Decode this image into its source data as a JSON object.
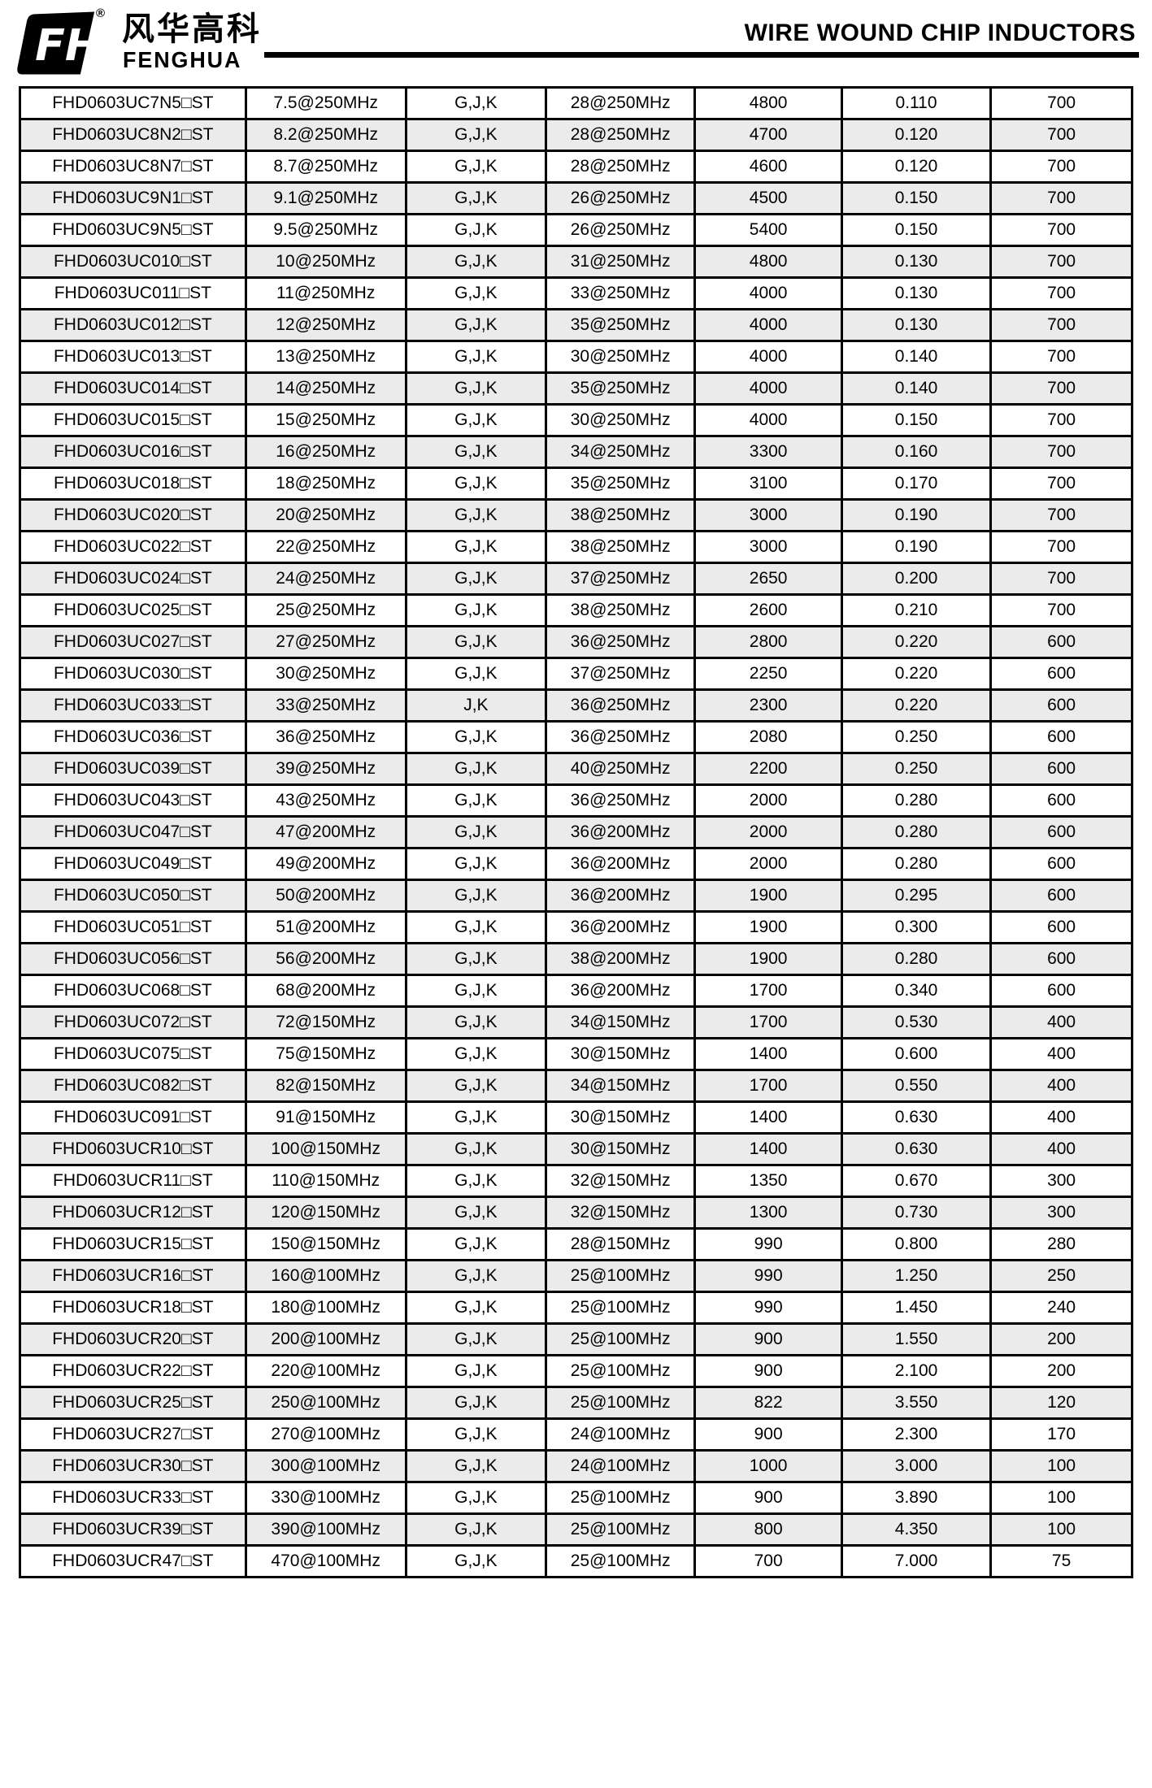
{
  "header": {
    "brand_cn": "风华高科",
    "brand_en": "FENGHUA",
    "registered_mark": "®",
    "logo_monogram": "FH",
    "title": "WIRE WOUND CHIP INDUCTORS"
  },
  "colors": {
    "text": "#000000",
    "border": "#000000",
    "row_alt_background": "#ebebeb",
    "logo": "#000000"
  },
  "table": {
    "column_keys": [
      "part-number",
      "inductance",
      "tolerance",
      "q-factor",
      "srf",
      "dcr",
      "rated-current"
    ],
    "rows": [
      [
        "FHD0603UC7N5□ST",
        "7.5@250MHz",
        "G,J,K",
        "28@250MHz",
        "4800",
        "0.110",
        "700"
      ],
      [
        "FHD0603UC8N2□ST",
        "8.2@250MHz",
        "G,J,K",
        "28@250MHz",
        "4700",
        "0.120",
        "700"
      ],
      [
        "FHD0603UC8N7□ST",
        "8.7@250MHz",
        "G,J,K",
        "28@250MHz",
        "4600",
        "0.120",
        "700"
      ],
      [
        "FHD0603UC9N1□ST",
        "9.1@250MHz",
        "G,J,K",
        "26@250MHz",
        "4500",
        "0.150",
        "700"
      ],
      [
        "FHD0603UC9N5□ST",
        "9.5@250MHz",
        "G,J,K",
        "26@250MHz",
        "5400",
        "0.150",
        "700"
      ],
      [
        "FHD0603UC010□ST",
        "10@250MHz",
        "G,J,K",
        "31@250MHz",
        "4800",
        "0.130",
        "700"
      ],
      [
        "FHD0603UC011□ST",
        "11@250MHz",
        "G,J,K",
        "33@250MHz",
        "4000",
        "0.130",
        "700"
      ],
      [
        "FHD0603UC012□ST",
        "12@250MHz",
        "G,J,K",
        "35@250MHz",
        "4000",
        "0.130",
        "700"
      ],
      [
        "FHD0603UC013□ST",
        "13@250MHz",
        "G,J,K",
        "30@250MHz",
        "4000",
        "0.140",
        "700"
      ],
      [
        "FHD0603UC014□ST",
        "14@250MHz",
        "G,J,K",
        "35@250MHz",
        "4000",
        "0.140",
        "700"
      ],
      [
        "FHD0603UC015□ST",
        "15@250MHz",
        "G,J,K",
        "30@250MHz",
        "4000",
        "0.150",
        "700"
      ],
      [
        "FHD0603UC016□ST",
        "16@250MHz",
        "G,J,K",
        "34@250MHz",
        "3300",
        "0.160",
        "700"
      ],
      [
        "FHD0603UC018□ST",
        "18@250MHz",
        "G,J,K",
        "35@250MHz",
        "3100",
        "0.170",
        "700"
      ],
      [
        "FHD0603UC020□ST",
        "20@250MHz",
        "G,J,K",
        "38@250MHz",
        "3000",
        "0.190",
        "700"
      ],
      [
        "FHD0603UC022□ST",
        "22@250MHz",
        "G,J,K",
        "38@250MHz",
        "3000",
        "0.190",
        "700"
      ],
      [
        "FHD0603UC024□ST",
        "24@250MHz",
        "G,J,K",
        "37@250MHz",
        "2650",
        "0.200",
        "700"
      ],
      [
        "FHD0603UC025□ST",
        "25@250MHz",
        "G,J,K",
        "38@250MHz",
        "2600",
        "0.210",
        "700"
      ],
      [
        "FHD0603UC027□ST",
        "27@250MHz",
        "G,J,K",
        "36@250MHz",
        "2800",
        "0.220",
        "600"
      ],
      [
        "FHD0603UC030□ST",
        "30@250MHz",
        "G,J,K",
        "37@250MHz",
        "2250",
        "0.220",
        "600"
      ],
      [
        "FHD0603UC033□ST",
        "33@250MHz",
        "J,K",
        "36@250MHz",
        "2300",
        "0.220",
        "600"
      ],
      [
        "FHD0603UC036□ST",
        "36@250MHz",
        "G,J,K",
        "36@250MHz",
        "2080",
        "0.250",
        "600"
      ],
      [
        "FHD0603UC039□ST",
        "39@250MHz",
        "G,J,K",
        "40@250MHz",
        "2200",
        "0.250",
        "600"
      ],
      [
        "FHD0603UC043□ST",
        "43@250MHz",
        "G,J,K",
        "36@250MHz",
        "2000",
        "0.280",
        "600"
      ],
      [
        "FHD0603UC047□ST",
        "47@200MHz",
        "G,J,K",
        "36@200MHz",
        "2000",
        "0.280",
        "600"
      ],
      [
        "FHD0603UC049□ST",
        "49@200MHz",
        "G,J,K",
        "36@200MHz",
        "2000",
        "0.280",
        "600"
      ],
      [
        "FHD0603UC050□ST",
        "50@200MHz",
        "G,J,K",
        "36@200MHz",
        "1900",
        "0.295",
        "600"
      ],
      [
        "FHD0603UC051□ST",
        "51@200MHz",
        "G,J,K",
        "36@200MHz",
        "1900",
        "0.300",
        "600"
      ],
      [
        "FHD0603UC056□ST",
        "56@200MHz",
        "G,J,K",
        "38@200MHz",
        "1900",
        "0.280",
        "600"
      ],
      [
        "FHD0603UC068□ST",
        "68@200MHz",
        "G,J,K",
        "36@200MHz",
        "1700",
        "0.340",
        "600"
      ],
      [
        "FHD0603UC072□ST",
        "72@150MHz",
        "G,J,K",
        "34@150MHz",
        "1700",
        "0.530",
        "400"
      ],
      [
        "FHD0603UC075□ST",
        "75@150MHz",
        "G,J,K",
        "30@150MHz",
        "1400",
        "0.600",
        "400"
      ],
      [
        "FHD0603UC082□ST",
        "82@150MHz",
        "G,J,K",
        "34@150MHz",
        "1700",
        "0.550",
        "400"
      ],
      [
        "FHD0603UC091□ST",
        "91@150MHz",
        "G,J,K",
        "30@150MHz",
        "1400",
        "0.630",
        "400"
      ],
      [
        "FHD0603UCR10□ST",
        "100@150MHz",
        "G,J,K",
        "30@150MHz",
        "1400",
        "0.630",
        "400"
      ],
      [
        "FHD0603UCR11□ST",
        "110@150MHz",
        "G,J,K",
        "32@150MHz",
        "1350",
        "0.670",
        "300"
      ],
      [
        "FHD0603UCR12□ST",
        "120@150MHz",
        "G,J,K",
        "32@150MHz",
        "1300",
        "0.730",
        "300"
      ],
      [
        "FHD0603UCR15□ST",
        "150@150MHz",
        "G,J,K",
        "28@150MHz",
        "990",
        "0.800",
        "280"
      ],
      [
        "FHD0603UCR16□ST",
        "160@100MHz",
        "G,J,K",
        "25@100MHz",
        "990",
        "1.250",
        "250"
      ],
      [
        "FHD0603UCR18□ST",
        "180@100MHz",
        "G,J,K",
        "25@100MHz",
        "990",
        "1.450",
        "240"
      ],
      [
        "FHD0603UCR20□ST",
        "200@100MHz",
        "G,J,K",
        "25@100MHz",
        "900",
        "1.550",
        "200"
      ],
      [
        "FHD0603UCR22□ST",
        "220@100MHz",
        "G,J,K",
        "25@100MHz",
        "900",
        "2.100",
        "200"
      ],
      [
        "FHD0603UCR25□ST",
        "250@100MHz",
        "G,J,K",
        "25@100MHz",
        "822",
        "3.550",
        "120"
      ],
      [
        "FHD0603UCR27□ST",
        "270@100MHz",
        "G,J,K",
        "24@100MHz",
        "900",
        "2.300",
        "170"
      ],
      [
        "FHD0603UCR30□ST",
        "300@100MHz",
        "G,J,K",
        "24@100MHz",
        "1000",
        "3.000",
        "100"
      ],
      [
        "FHD0603UCR33□ST",
        "330@100MHz",
        "G,J,K",
        "25@100MHz",
        "900",
        "3.890",
        "100"
      ],
      [
        "FHD0603UCR39□ST",
        "390@100MHz",
        "G,J,K",
        "25@100MHz",
        "800",
        "4.350",
        "100"
      ],
      [
        "FHD0603UCR47□ST",
        "470@100MHz",
        "G,J,K",
        "25@100MHz",
        "700",
        "7.000",
        "75"
      ]
    ]
  }
}
